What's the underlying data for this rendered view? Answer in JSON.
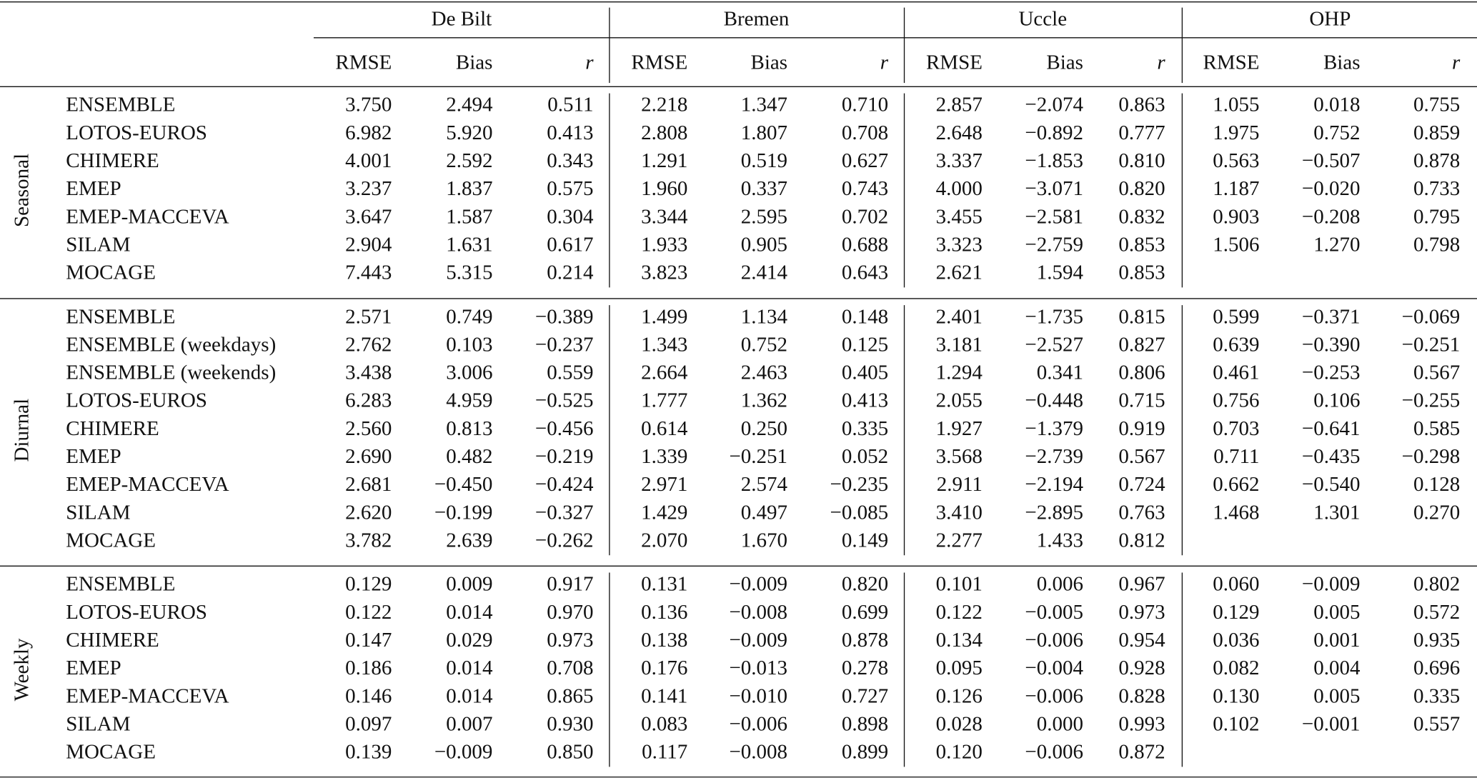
{
  "table": {
    "stations": [
      "De Bilt",
      "Bremen",
      "Uccle",
      "OHP"
    ],
    "metrics": [
      "RMSE",
      "Bias",
      "r"
    ],
    "sections": [
      {
        "label": "Seasonal",
        "rows": [
          {
            "model": "ENSEMBLE",
            "cells": [
              "3.750",
              "2.494",
              "0.511",
              "2.218",
              "1.347",
              "0.710",
              "2.857",
              "−2.074",
              "0.863",
              "1.055",
              "0.018",
              "0.755"
            ]
          },
          {
            "model": "LOTOS-EUROS",
            "cells": [
              "6.982",
              "5.920",
              "0.413",
              "2.808",
              "1.807",
              "0.708",
              "2.648",
              "−0.892",
              "0.777",
              "1.975",
              "0.752",
              "0.859"
            ]
          },
          {
            "model": "CHIMERE",
            "cells": [
              "4.001",
              "2.592",
              "0.343",
              "1.291",
              "0.519",
              "0.627",
              "3.337",
              "−1.853",
              "0.810",
              "0.563",
              "−0.507",
              "0.878"
            ]
          },
          {
            "model": "EMEP",
            "cells": [
              "3.237",
              "1.837",
              "0.575",
              "1.960",
              "0.337",
              "0.743",
              "4.000",
              "−3.071",
              "0.820",
              "1.187",
              "−0.020",
              "0.733"
            ]
          },
          {
            "model": "EMEP-MACCEVA",
            "cells": [
              "3.647",
              "1.587",
              "0.304",
              "3.344",
              "2.595",
              "0.702",
              "3.455",
              "−2.581",
              "0.832",
              "0.903",
              "−0.208",
              "0.795"
            ]
          },
          {
            "model": "SILAM",
            "cells": [
              "2.904",
              "1.631",
              "0.617",
              "1.933",
              "0.905",
              "0.688",
              "3.323",
              "−2.759",
              "0.853",
              "1.506",
              "1.270",
              "0.798"
            ]
          },
          {
            "model": "MOCAGE",
            "cells": [
              "7.443",
              "5.315",
              "0.214",
              "3.823",
              "2.414",
              "0.643",
              "2.621",
              "1.594",
              "0.853"
            ]
          }
        ]
      },
      {
        "label": "Diurnal",
        "rows": [
          {
            "model": "ENSEMBLE",
            "cells": [
              "2.571",
              "0.749",
              "−0.389",
              "1.499",
              "1.134",
              "0.148",
              "2.401",
              "−1.735",
              "0.815",
              "0.599",
              "−0.371",
              "−0.069"
            ]
          },
          {
            "model": "ENSEMBLE (weekdays)",
            "cells": [
              "2.762",
              "0.103",
              "−0.237",
              "1.343",
              "0.752",
              "0.125",
              "3.181",
              "−2.527",
              "0.827",
              "0.639",
              "−0.390",
              "−0.251"
            ]
          },
          {
            "model": "ENSEMBLE (weekends)",
            "cells": [
              "3.438",
              "3.006",
              "0.559",
              "2.664",
              "2.463",
              "0.405",
              "1.294",
              "0.341",
              "0.806",
              "0.461",
              "−0.253",
              "0.567"
            ]
          },
          {
            "model": "LOTOS-EUROS",
            "cells": [
              "6.283",
              "4.959",
              "−0.525",
              "1.777",
              "1.362",
              "0.413",
              "2.055",
              "−0.448",
              "0.715",
              "0.756",
              "0.106",
              "−0.255"
            ]
          },
          {
            "model": "CHIMERE",
            "cells": [
              "2.560",
              "0.813",
              "−0.456",
              "0.614",
              "0.250",
              "0.335",
              "1.927",
              "−1.379",
              "0.919",
              "0.703",
              "−0.641",
              "0.585"
            ]
          },
          {
            "model": "EMEP",
            "cells": [
              "2.690",
              "0.482",
              "−0.219",
              "1.339",
              "−0.251",
              "0.052",
              "3.568",
              "−2.739",
              "0.567",
              "0.711",
              "−0.435",
              "−0.298"
            ]
          },
          {
            "model": "EMEP-MACCEVA",
            "cells": [
              "2.681",
              "−0.450",
              "−0.424",
              "2.971",
              "2.574",
              "−0.235",
              "2.911",
              "−2.194",
              "0.724",
              "0.662",
              "−0.540",
              "0.128"
            ]
          },
          {
            "model": "SILAM",
            "cells": [
              "2.620",
              "−0.199",
              "−0.327",
              "1.429",
              "0.497",
              "−0.085",
              "3.410",
              "−2.895",
              "0.763",
              "1.468",
              "1.301",
              "0.270"
            ]
          },
          {
            "model": "MOCAGE",
            "cells": [
              "3.782",
              "2.639",
              "−0.262",
              "2.070",
              "1.670",
              "0.149",
              "2.277",
              "1.433",
              "0.812"
            ]
          }
        ]
      },
      {
        "label": "Weekly",
        "rows": [
          {
            "model": "ENSEMBLE",
            "cells": [
              "0.129",
              "0.009",
              "0.917",
              "0.131",
              "−0.009",
              "0.820",
              "0.101",
              "0.006",
              "0.967",
              "0.060",
              "−0.009",
              "0.802"
            ]
          },
          {
            "model": "LOTOS-EUROS",
            "cells": [
              "0.122",
              "0.014",
              "0.970",
              "0.136",
              "−0.008",
              "0.699",
              "0.122",
              "−0.005",
              "0.973",
              "0.129",
              "0.005",
              "0.572"
            ]
          },
          {
            "model": "CHIMERE",
            "cells": [
              "0.147",
              "0.029",
              "0.973",
              "0.138",
              "−0.009",
              "0.878",
              "0.134",
              "−0.006",
              "0.954",
              "0.036",
              "0.001",
              "0.935"
            ]
          },
          {
            "model": "EMEP",
            "cells": [
              "0.186",
              "0.014",
              "0.708",
              "0.176",
              "−0.013",
              "0.278",
              "0.095",
              "−0.004",
              "0.928",
              "0.082",
              "0.004",
              "0.696"
            ]
          },
          {
            "model": "EMEP-MACCEVA",
            "cells": [
              "0.146",
              "0.014",
              "0.865",
              "0.141",
              "−0.010",
              "0.727",
              "0.126",
              "−0.006",
              "0.828",
              "0.130",
              "0.005",
              "0.335"
            ]
          },
          {
            "model": "SILAM",
            "cells": [
              "0.097",
              "0.007",
              "0.930",
              "0.083",
              "−0.006",
              "0.898",
              "0.028",
              "0.000",
              "0.993",
              "0.102",
              "−0.001",
              "0.557"
            ]
          },
          {
            "model": "MOCAGE",
            "cells": [
              "0.139",
              "−0.009",
              "0.850",
              "0.117",
              "−0.008",
              "0.899",
              "0.120",
              "−0.006",
              "0.872"
            ]
          }
        ]
      }
    ]
  }
}
